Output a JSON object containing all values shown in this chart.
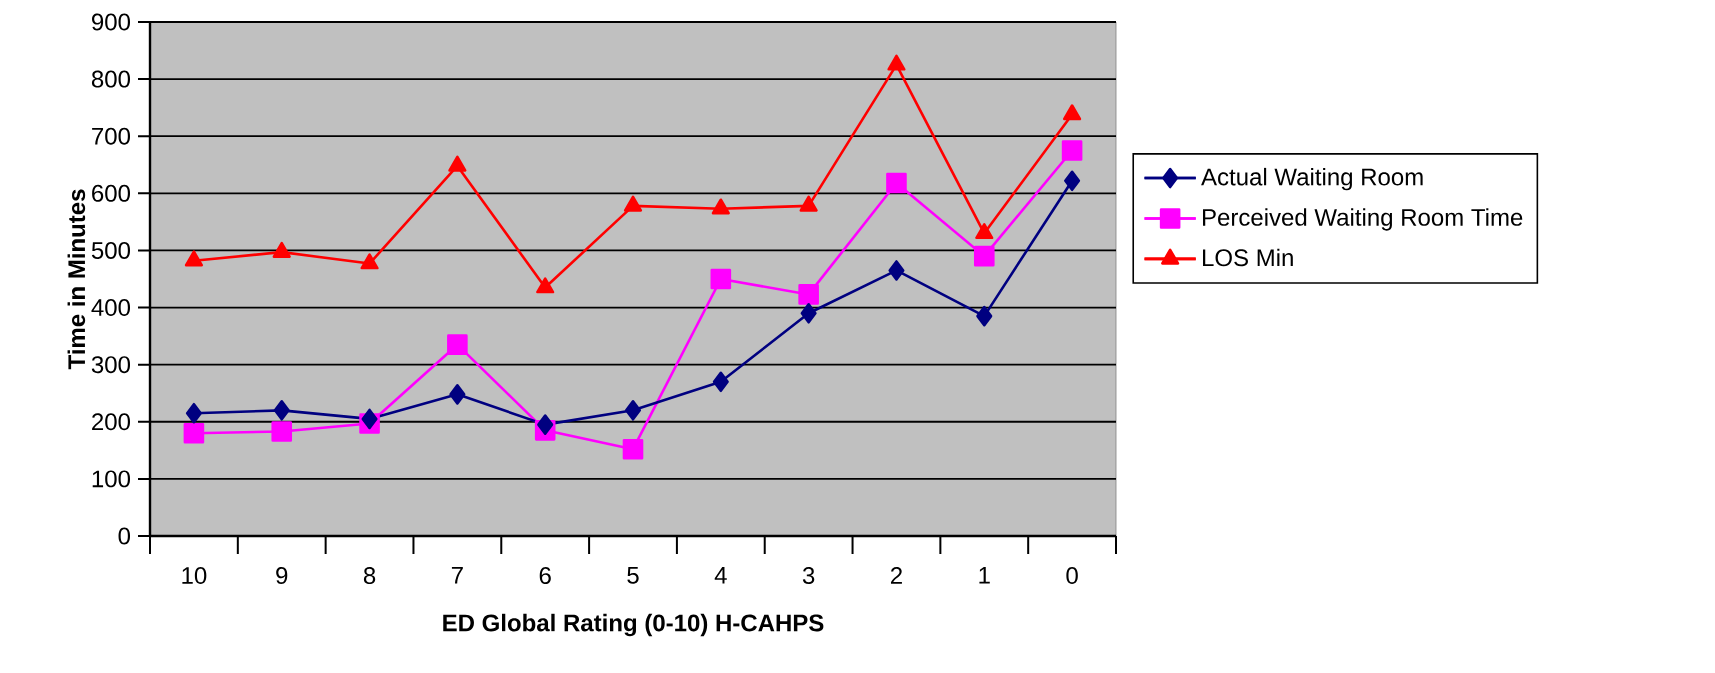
{
  "chart_data": {
    "type": "line",
    "xlabel": "ED Global Rating (0-10) H-CAHPS",
    "ylabel": "Time in Minutes",
    "categories": [
      "10",
      "9",
      "8",
      "7",
      "6",
      "5",
      "4",
      "3",
      "2",
      "1",
      "0"
    ],
    "ylim": [
      0,
      900
    ],
    "yticks": [
      0,
      100,
      200,
      300,
      400,
      500,
      600,
      700,
      800,
      900
    ],
    "grid": "y",
    "legend": "right",
    "series": [
      {
        "name": "Actual Waiting Room",
        "color": "#000080",
        "marker": "diamond",
        "values": [
          215,
          220,
          205,
          248,
          195,
          220,
          270,
          390,
          465,
          385,
          622
        ]
      },
      {
        "name": "Perceived Waiting Room Time",
        "color": "#ff00ff",
        "marker": "square",
        "values": [
          180,
          183,
          197,
          335,
          185,
          152,
          450,
          423,
          618,
          490,
          675
        ]
      },
      {
        "name": "LOS Min",
        "color": "#ff0000",
        "marker": "triangle",
        "values": [
          482,
          497,
          477,
          648,
          435,
          578,
          573,
          578,
          825,
          530,
          738
        ]
      }
    ]
  }
}
